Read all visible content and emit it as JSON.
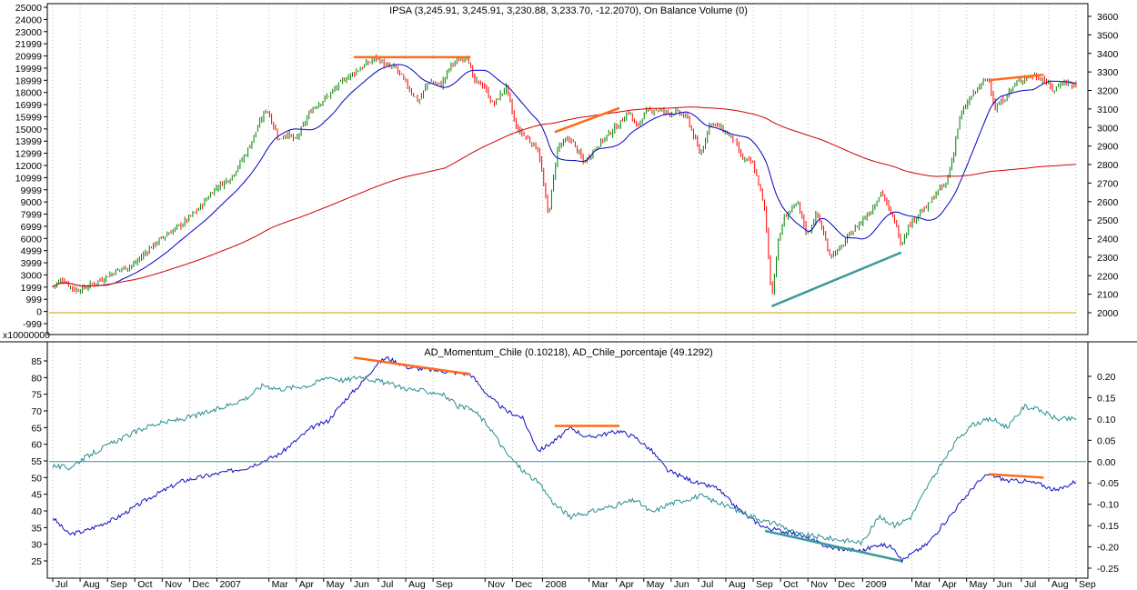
{
  "chart_data": [
    {
      "type": "candlestick",
      "title": "IPSA (3,245.91, 3,245.91, 3,230.88, 3,233.70, -12.2070), On Balance Volume (0)",
      "obv_multiplier_label": "x10000000",
      "y_left_ticks": [
        "25000",
        "24000",
        "23000",
        "21999",
        "20999",
        "19999",
        "18999",
        "18000",
        "16999",
        "15999",
        "15000",
        "13999",
        "12999",
        "12000",
        "10999",
        "9999",
        "9000",
        "7999",
        "6999",
        "6000",
        "4999",
        "3999",
        "3000",
        "1999",
        "999",
        "0",
        "-999"
      ],
      "y_right_ticks": [
        "3600",
        "3500",
        "3400",
        "3300",
        "3200",
        "3100",
        "3000",
        "2900",
        "2800",
        "2700",
        "2600",
        "2500",
        "2400",
        "2300",
        "2200",
        "2100",
        "2000"
      ],
      "y_right_range": [
        2000,
        3600
      ],
      "price_path": [
        [
          0,
          2143
        ],
        [
          0.3,
          2180
        ],
        [
          0.7,
          2120
        ],
        [
          1,
          2135
        ],
        [
          1.5,
          2180
        ],
        [
          2,
          2230
        ],
        [
          2.5,
          2260
        ],
        [
          3,
          2350
        ],
        [
          3.5,
          2420
        ],
        [
          4,
          2480
        ],
        [
          4.5,
          2560
        ],
        [
          5,
          2670
        ],
        [
          5.5,
          2730
        ],
        [
          6,
          2870
        ],
        [
          6.3,
          2990
        ],
        [
          6.6,
          3105
        ],
        [
          7,
          2930
        ],
        [
          7.2,
          2970
        ],
        [
          7.5,
          2930
        ],
        [
          8,
          3100
        ],
        [
          8.5,
          3170
        ],
        [
          9,
          3260
        ],
        [
          9.5,
          3320
        ],
        [
          10,
          3380
        ],
        [
          10.3,
          3330
        ],
        [
          10.6,
          3320
        ],
        [
          11,
          3210
        ],
        [
          11.3,
          3140
        ],
        [
          11.6,
          3250
        ],
        [
          12,
          3230
        ],
        [
          12.3,
          3340
        ],
        [
          12.8,
          3390
        ],
        [
          13,
          3250
        ],
        [
          13.3,
          3230
        ],
        [
          13.6,
          3120
        ],
        [
          14,
          3220
        ],
        [
          14.3,
          3000
        ],
        [
          14.6,
          2950
        ],
        [
          15,
          2880
        ],
        [
          15.3,
          2520
        ],
        [
          15.6,
          2900
        ],
        [
          16,
          2940
        ],
        [
          16.4,
          2810
        ],
        [
          16.8,
          2900
        ],
        [
          17.2,
          2970
        ],
        [
          17.5,
          3020
        ],
        [
          17.8,
          3090
        ],
        [
          18,
          3000
        ],
        [
          18.3,
          3080
        ],
        [
          18.6,
          3100
        ],
        [
          19,
          3080
        ],
        [
          19.3,
          3080
        ],
        [
          19.6,
          3050
        ],
        [
          20,
          2850
        ],
        [
          20.3,
          3030
        ],
        [
          20.6,
          3000
        ],
        [
          21,
          2940
        ],
        [
          21.3,
          2830
        ],
        [
          21.6,
          2810
        ],
        [
          21.8,
          2700
        ],
        [
          22,
          2540
        ],
        [
          22.2,
          2080
        ],
        [
          22.4,
          2380
        ],
        [
          22.6,
          2520
        ],
        [
          23,
          2590
        ],
        [
          23.3,
          2420
        ],
        [
          23.6,
          2540
        ],
        [
          24,
          2310
        ],
        [
          24.3,
          2340
        ],
        [
          24.6,
          2420
        ],
        [
          25,
          2500
        ],
        [
          25.3,
          2560
        ],
        [
          25.6,
          2660
        ],
        [
          25.8,
          2560
        ],
        [
          26,
          2500
        ],
        [
          26.2,
          2370
        ],
        [
          26.4,
          2460
        ],
        [
          26.7,
          2530
        ],
        [
          27,
          2570
        ],
        [
          27.3,
          2650
        ],
        [
          27.6,
          2700
        ],
        [
          27.8,
          2850
        ],
        [
          28,
          3050
        ],
        [
          28.3,
          3150
        ],
        [
          28.6,
          3220
        ],
        [
          28.9,
          3270
        ],
        [
          29.1,
          3100
        ],
        [
          29.4,
          3160
        ],
        [
          29.7,
          3230
        ],
        [
          30,
          3270
        ],
        [
          30.3,
          3280
        ],
        [
          30.6,
          3260
        ],
        [
          30.9,
          3200
        ],
        [
          31.2,
          3250
        ],
        [
          31.6,
          3225
        ]
      ],
      "series": [
        {
          "name": "IPSA",
          "role": "candles",
          "colors": {
            "up": "#008000",
            "down": "#ff0000"
          }
        },
        {
          "name": "",
          "role": "short moving average",
          "color": "#0000c0"
        },
        {
          "name": "",
          "role": "long moving average",
          "color": "#d00000"
        },
        {
          "name": "On Balance Volume (0)",
          "role": "flat line at 0",
          "color": "#c8a000"
        }
      ],
      "trendlines": [
        {
          "color": "#ff6a1a",
          "x": [
            9.3,
            12.9
          ],
          "y": [
            3380,
            3380
          ]
        },
        {
          "color": "#ff6a1a",
          "x": [
            15.5,
            17.5
          ],
          "y": [
            2975,
            3105
          ]
        },
        {
          "color": "#ff6a1a",
          "x": [
            28.9,
            30.6
          ],
          "y": [
            3255,
            3285
          ]
        },
        {
          "color": "#3a9a9a",
          "x": [
            22.2,
            26.2
          ],
          "y": [
            2035,
            2325
          ]
        }
      ]
    },
    {
      "type": "line",
      "title": "AD_Momentum_Chile (0.10218), AD_Chile_porcentaje (49.1292)",
      "y_left_ticks": [
        85,
        80,
        75,
        70,
        65,
        60,
        55,
        50,
        45,
        40,
        35,
        30,
        25
      ],
      "y_left_range": [
        22,
        88
      ],
      "y_right_ticks": [
        "0.20",
        "0.15",
        "0.10",
        "0.05",
        "0.00",
        "-0.05",
        "-0.10",
        "-0.15",
        "-0.20",
        "-0.25"
      ],
      "y_right_range": [
        -0.25,
        0.2
      ],
      "series": [
        {
          "name": "AD_Chile_porcentaje",
          "color": "#1010c0",
          "axis": "left",
          "path": [
            [
              0,
              38
            ],
            [
              0.5,
              33
            ],
            [
              1,
              34
            ],
            [
              2,
              38
            ],
            [
              3,
              44
            ],
            [
              4,
              49
            ],
            [
              5,
              51
            ],
            [
              6,
              53
            ],
            [
              7,
              57
            ],
            [
              8,
              65
            ],
            [
              8.5,
              67
            ],
            [
              9,
              73
            ],
            [
              9.5,
              78
            ],
            [
              10,
              84
            ],
            [
              10.3,
              86
            ],
            [
              11,
              83
            ],
            [
              12,
              82
            ],
            [
              12.9,
              81
            ],
            [
              13.5,
              74
            ],
            [
              14,
              70
            ],
            [
              14.5,
              68
            ],
            [
              15,
              58
            ],
            [
              15.5,
              61
            ],
            [
              16,
              65
            ],
            [
              16.5,
              62
            ],
            [
              17,
              63
            ],
            [
              17.5,
              64
            ],
            [
              18,
              62
            ],
            [
              18.5,
              58
            ],
            [
              19,
              52
            ],
            [
              20,
              48
            ],
            [
              20.5,
              47
            ],
            [
              21,
              42
            ],
            [
              21.5,
              38
            ],
            [
              22,
              35
            ],
            [
              22.5,
              34
            ],
            [
              23,
              33
            ],
            [
              24,
              29
            ],
            [
              25,
              28
            ],
            [
              25.5,
              30
            ],
            [
              26,
              29
            ],
            [
              26.2,
              25
            ],
            [
              26.5,
              27
            ],
            [
              27,
              30
            ],
            [
              27.5,
              36
            ],
            [
              28,
              42
            ],
            [
              28.5,
              48
            ],
            [
              28.9,
              51
            ],
            [
              29.5,
              49
            ],
            [
              30,
              49
            ],
            [
              30.5,
              48
            ],
            [
              31,
              46
            ],
            [
              31.6,
              49
            ]
          ]
        },
        {
          "name": "AD_Momentum_Chile",
          "color": "#2a8f8f",
          "axis": "right",
          "path": [
            [
              0,
              -0.01
            ],
            [
              0.5,
              -0.015
            ],
            [
              1,
              0.01
            ],
            [
              2,
              0.05
            ],
            [
              3,
              0.085
            ],
            [
              4,
              0.1
            ],
            [
              5,
              0.12
            ],
            [
              6,
              0.15
            ],
            [
              6.5,
              0.18
            ],
            [
              7,
              0.17
            ],
            [
              8,
              0.18
            ],
            [
              8.5,
              0.2
            ],
            [
              9,
              0.19
            ],
            [
              9.5,
              0.2
            ],
            [
              10,
              0.19
            ],
            [
              11,
              0.17
            ],
            [
              12,
              0.16
            ],
            [
              12.5,
              0.13
            ],
            [
              13,
              0.12
            ],
            [
              13.5,
              0.08
            ],
            [
              14,
              0.02
            ],
            [
              14.5,
              -0.02
            ],
            [
              15,
              -0.05
            ],
            [
              15.5,
              -0.1
            ],
            [
              16,
              -0.13
            ],
            [
              16.5,
              -0.12
            ],
            [
              17,
              -0.11
            ],
            [
              18,
              -0.09
            ],
            [
              18.5,
              -0.12
            ],
            [
              19,
              -0.1
            ],
            [
              20,
              -0.08
            ],
            [
              21,
              -0.11
            ],
            [
              22,
              -0.14
            ],
            [
              22.5,
              -0.15
            ],
            [
              23,
              -0.17
            ],
            [
              24,
              -0.18
            ],
            [
              25,
              -0.19
            ],
            [
              25.5,
              -0.13
            ],
            [
              26,
              -0.15
            ],
            [
              26.5,
              -0.13
            ],
            [
              27,
              -0.06
            ],
            [
              27.5,
              0.0
            ],
            [
              28,
              0.06
            ],
            [
              28.5,
              0.09
            ],
            [
              29,
              0.1
            ],
            [
              29.5,
              0.08
            ],
            [
              30,
              0.13
            ],
            [
              30.5,
              0.12
            ],
            [
              31,
              0.1
            ],
            [
              31.6,
              0.1
            ]
          ]
        },
        {
          "name": "",
          "role": "zero line",
          "color": "#3a8fa0",
          "axis": "right",
          "path": [
            [
              0,
              0
            ],
            [
              31.6,
              0
            ]
          ]
        }
      ],
      "trendlines": [
        {
          "color": "#ff6a1a",
          "axis": "left",
          "x": [
            9.3,
            12.9
          ],
          "y": [
            86,
            81
          ]
        },
        {
          "color": "#ff6a1a",
          "axis": "left",
          "x": [
            15.5,
            17.5
          ],
          "y": [
            65.5,
            65.5
          ]
        },
        {
          "color": "#ff6a1a",
          "axis": "left",
          "x": [
            28.9,
            30.6
          ],
          "y": [
            51,
            50
          ]
        },
        {
          "color": "#3a9a9a",
          "axis": "left",
          "x": [
            22,
            26.2
          ],
          "y": [
            34,
            25
          ]
        }
      ]
    }
  ],
  "x_axis_labels": [
    "Jul",
    "Aug",
    "Sep",
    "Oct",
    "Nov",
    "Dec",
    "2007",
    "Mar",
    "Apr",
    "May",
    "Jun",
    "Jul",
    "Aug",
    "Sep",
    "Nov",
    "Dec",
    "2008",
    "Mar",
    "Apr",
    "May",
    "Jun",
    "Jul",
    "Aug",
    "Sep",
    "Oct",
    "Nov",
    "Dec",
    "2009",
    "Mar",
    "Apr",
    "May",
    "Jun",
    "Jul",
    "Aug",
    "Sep"
  ],
  "x_axis_positions": [
    0,
    1,
    2,
    3,
    4,
    5,
    6,
    7.9,
    8.9,
    9.9,
    10.9,
    11.9,
    12.9,
    13.9,
    15.8,
    16.8,
    17.9,
    19.6,
    20.6,
    21.6,
    22.6,
    23.6,
    24.6,
    25.6,
    26.6,
    27.6,
    28.6,
    29.6,
    31.4,
    32.4,
    33.4,
    34.4,
    35.4,
    36.4,
    37.4
  ]
}
